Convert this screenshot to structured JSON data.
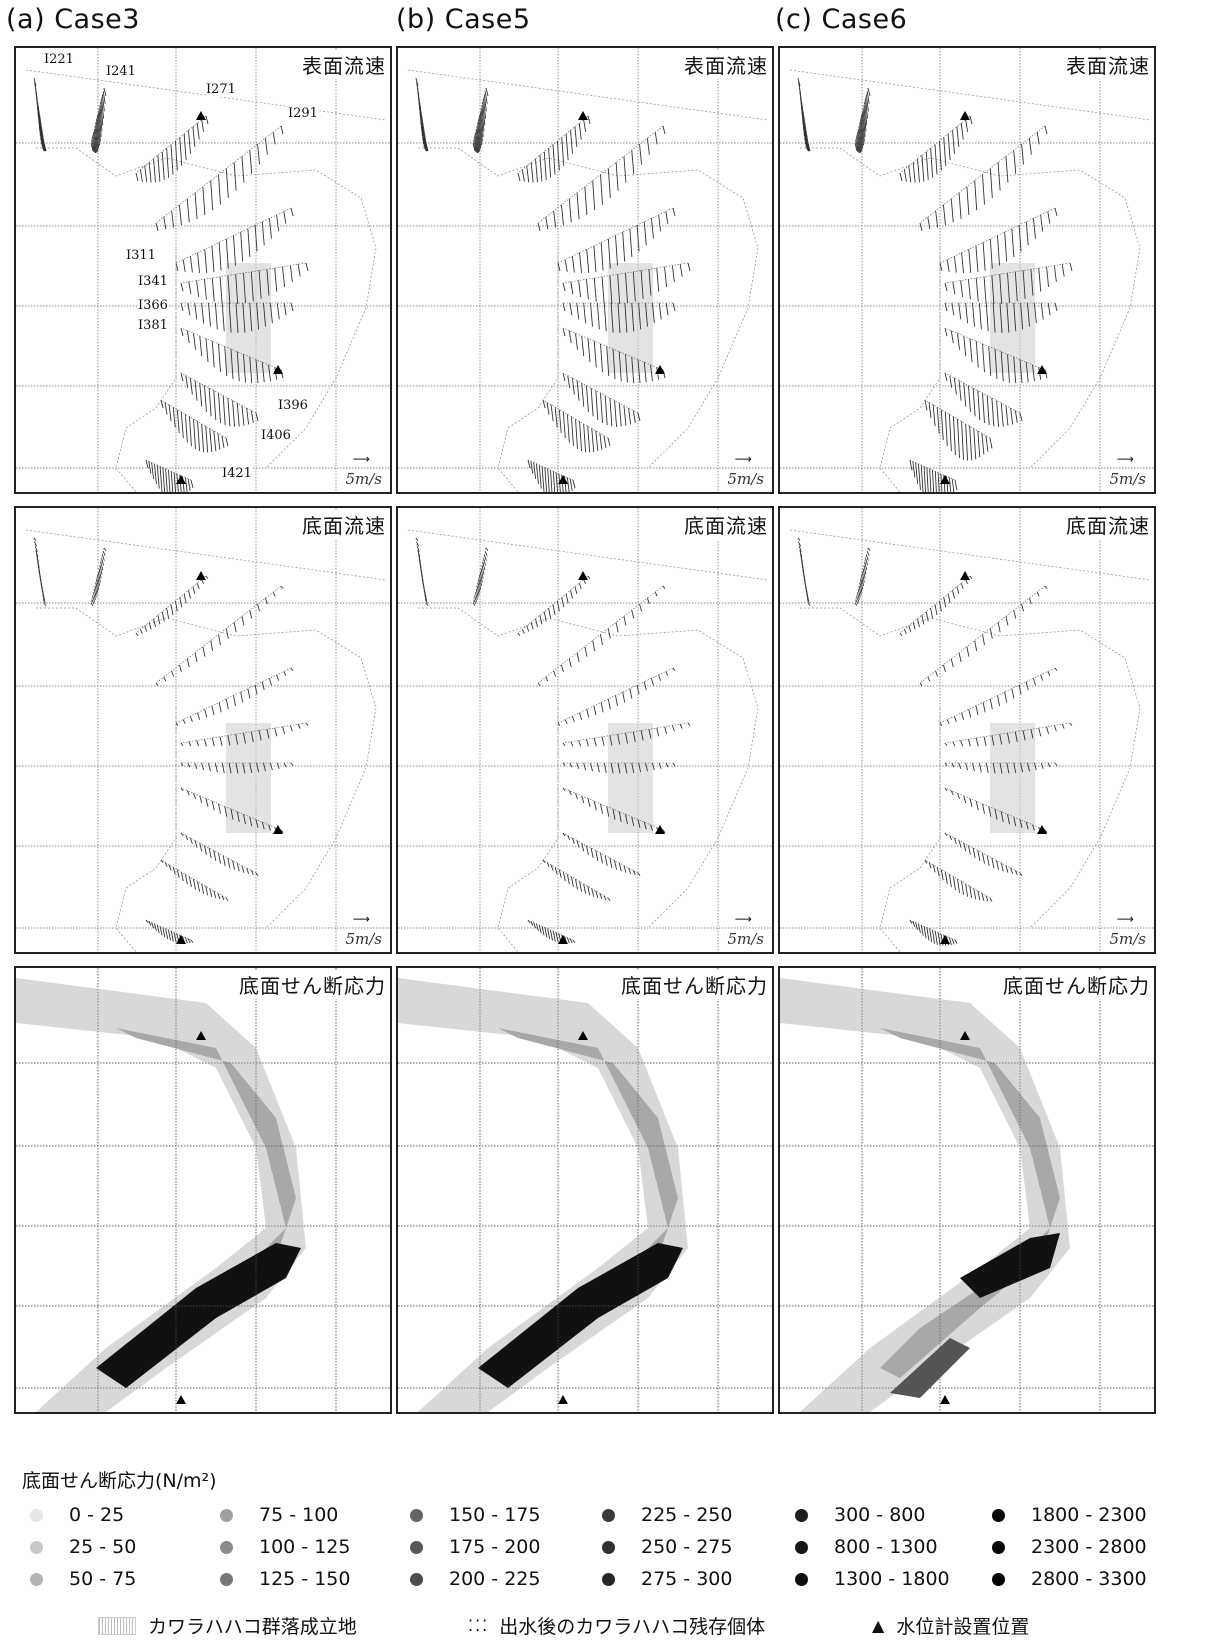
{
  "columns": [
    {
      "title": "(a) Case3"
    },
    {
      "title": "(b) Case5"
    },
    {
      "title": "(c) Case6"
    }
  ],
  "row_labels": [
    "表面流速",
    "底面流速",
    "底面せん断応力"
  ],
  "scale_label": "5m/s",
  "section_labels": [
    "I221",
    "I241",
    "I271",
    "I291",
    "I311",
    "I341",
    "I366",
    "I381",
    "I396",
    "I406",
    "I421"
  ],
  "legend": {
    "title": "底面せん断応力(N/m²)",
    "colors": [
      "#e6e6e6",
      "#c8c8c8",
      "#b4b4b4",
      "#a0a0a0",
      "#8c8c8c",
      "#787878",
      "#646464",
      "#585858",
      "#4c4c4c",
      "#3a3a3a",
      "#303030",
      "#262626",
      "#1e1e1e",
      "#161616",
      "#0e0e0e",
      "#080808",
      "#040404",
      "#000000"
    ],
    "items": [
      "0 - 25",
      "25 - 50",
      "50 - 75",
      "75 - 100",
      "100 - 125",
      "125 - 150",
      "150 - 175",
      "175 - 200",
      "200 - 225",
      "225 - 250",
      "250 - 275",
      "275 - 300",
      "300 - 800",
      "800 - 1300",
      "1300 - 1800",
      "1800 - 2300",
      "2300 - 2800",
      "2800 - 3300"
    ]
  },
  "bottom_legend": {
    "community": "カワラハハコ群落成立地",
    "survivors": "出水後のカワラハハコ残存個体",
    "gauge": "水位計設置位置"
  }
}
